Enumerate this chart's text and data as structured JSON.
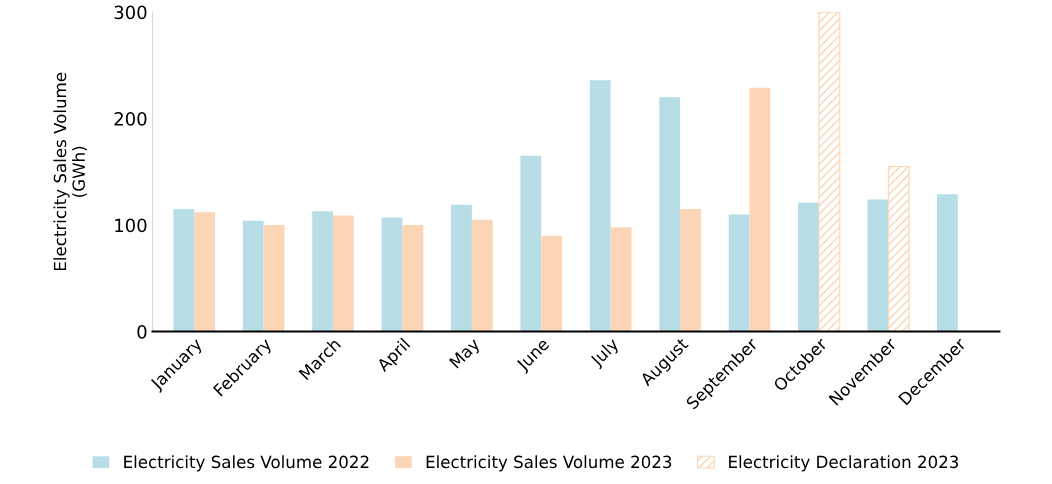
{
  "chart_data": {
    "type": "bar",
    "ylabel": "Electricity Sales Volume\n(GWh)",
    "categories": [
      "January",
      "February",
      "March",
      "April",
      "May",
      "June",
      "July",
      "August",
      "September",
      "October",
      "November",
      "December"
    ],
    "series": [
      {
        "name": "Electricity Sales Volume 2022",
        "color": "#b7dde6",
        "values": [
          115,
          104,
          113,
          107,
          119,
          165,
          236,
          220,
          110,
          121,
          124,
          129
        ]
      },
      {
        "name": "Electricity Sales Volume 2023",
        "color": "#fbd5b5",
        "values": [
          112,
          100,
          109,
          100,
          105,
          90,
          98,
          115,
          229,
          null,
          null,
          null
        ]
      },
      {
        "name": "Electricity Declaration 2023",
        "color": "#fbd5b5",
        "values": [
          null,
          null,
          null,
          null,
          null,
          null,
          null,
          null,
          null,
          300,
          155,
          null
        ]
      }
    ],
    "ylim": [
      0,
      300
    ],
    "yticks": [
      0,
      100,
      200,
      300
    ],
    "grid": false,
    "legend": "bottom"
  }
}
